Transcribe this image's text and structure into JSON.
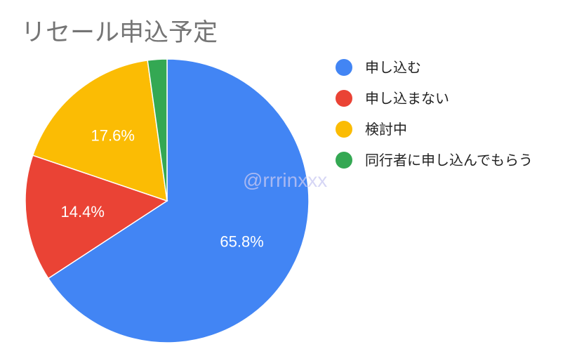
{
  "chart_data": {
    "type": "pie",
    "title": "リセール申込予定",
    "categories": [
      "申し込む",
      "申し込まない",
      "検討中",
      "同行者に申し込んでもらう"
    ],
    "values": [
      65.8,
      14.4,
      17.6,
      2.2
    ],
    "labels": [
      "65.8%",
      "14.4%",
      "17.6%",
      ""
    ],
    "colors": [
      "#4285F4",
      "#EA4335",
      "#FBBC04",
      "#34A853"
    ],
    "start": "top",
    "direction": "clockwise",
    "legend_position": "right"
  },
  "watermark": "@rrrinxxx"
}
